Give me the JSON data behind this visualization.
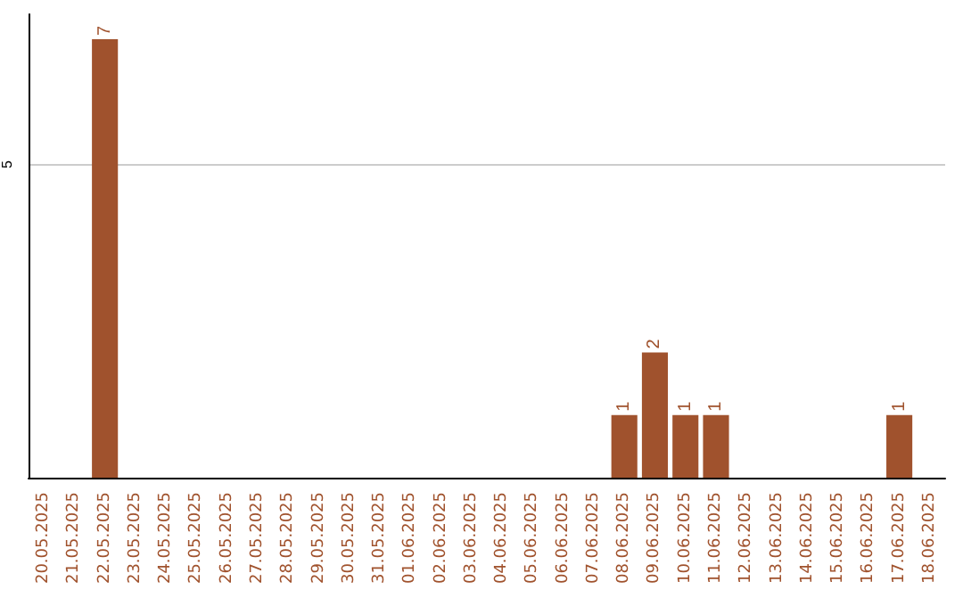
{
  "chart_data": {
    "type": "bar",
    "categories": [
      "20.05.2025",
      "21.05.2025",
      "22.05.2025",
      "23.05.2025",
      "24.05.2025",
      "25.05.2025",
      "26.05.2025",
      "27.05.2025",
      "28.05.2025",
      "29.05.2025",
      "30.05.2025",
      "31.05.2025",
      "01.06.2025",
      "02.06.2025",
      "03.06.2025",
      "04.06.2025",
      "05.06.2025",
      "06.06.2025",
      "07.06.2025",
      "08.06.2025",
      "09.06.2025",
      "10.06.2025",
      "11.06.2025",
      "12.06.2025",
      "13.06.2025",
      "14.06.2025",
      "15.06.2025",
      "16.06.2025",
      "17.06.2025",
      "18.06.2025"
    ],
    "values": [
      0,
      0,
      7,
      0,
      0,
      0,
      0,
      0,
      0,
      0,
      0,
      0,
      0,
      0,
      0,
      0,
      0,
      0,
      0,
      1,
      2,
      1,
      1,
      0,
      0,
      0,
      0,
      0,
      1,
      0
    ],
    "value_labels": [
      null,
      null,
      "7",
      null,
      null,
      null,
      null,
      null,
      null,
      null,
      null,
      null,
      null,
      null,
      null,
      null,
      null,
      null,
      null,
      "1",
      "2",
      "1",
      "1",
      null,
      null,
      null,
      null,
      null,
      "1",
      null
    ],
    "color": "#a0522d",
    "ylim": [
      0,
      7.4
    ],
    "yticks": [
      5
    ],
    "grid": "y"
  }
}
